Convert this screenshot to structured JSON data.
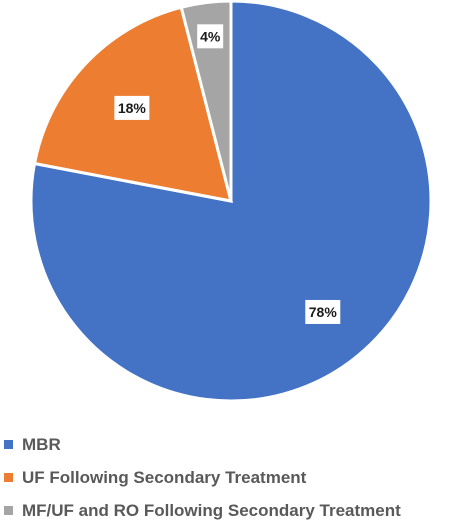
{
  "chart_data": {
    "type": "pie",
    "slices": [
      {
        "name": "MBR",
        "value": 78,
        "label": "78%",
        "color": "#4472C4"
      },
      {
        "name": "UF Following Secondary Treatment",
        "value": 18,
        "label": "18%",
        "color": "#ED7D31"
      },
      {
        "name": "MF/UF and RO Following Secondary Treatment",
        "value": 4,
        "label": "4%",
        "color": "#A5A5A5"
      }
    ],
    "legend_position": "bottom-left"
  }
}
